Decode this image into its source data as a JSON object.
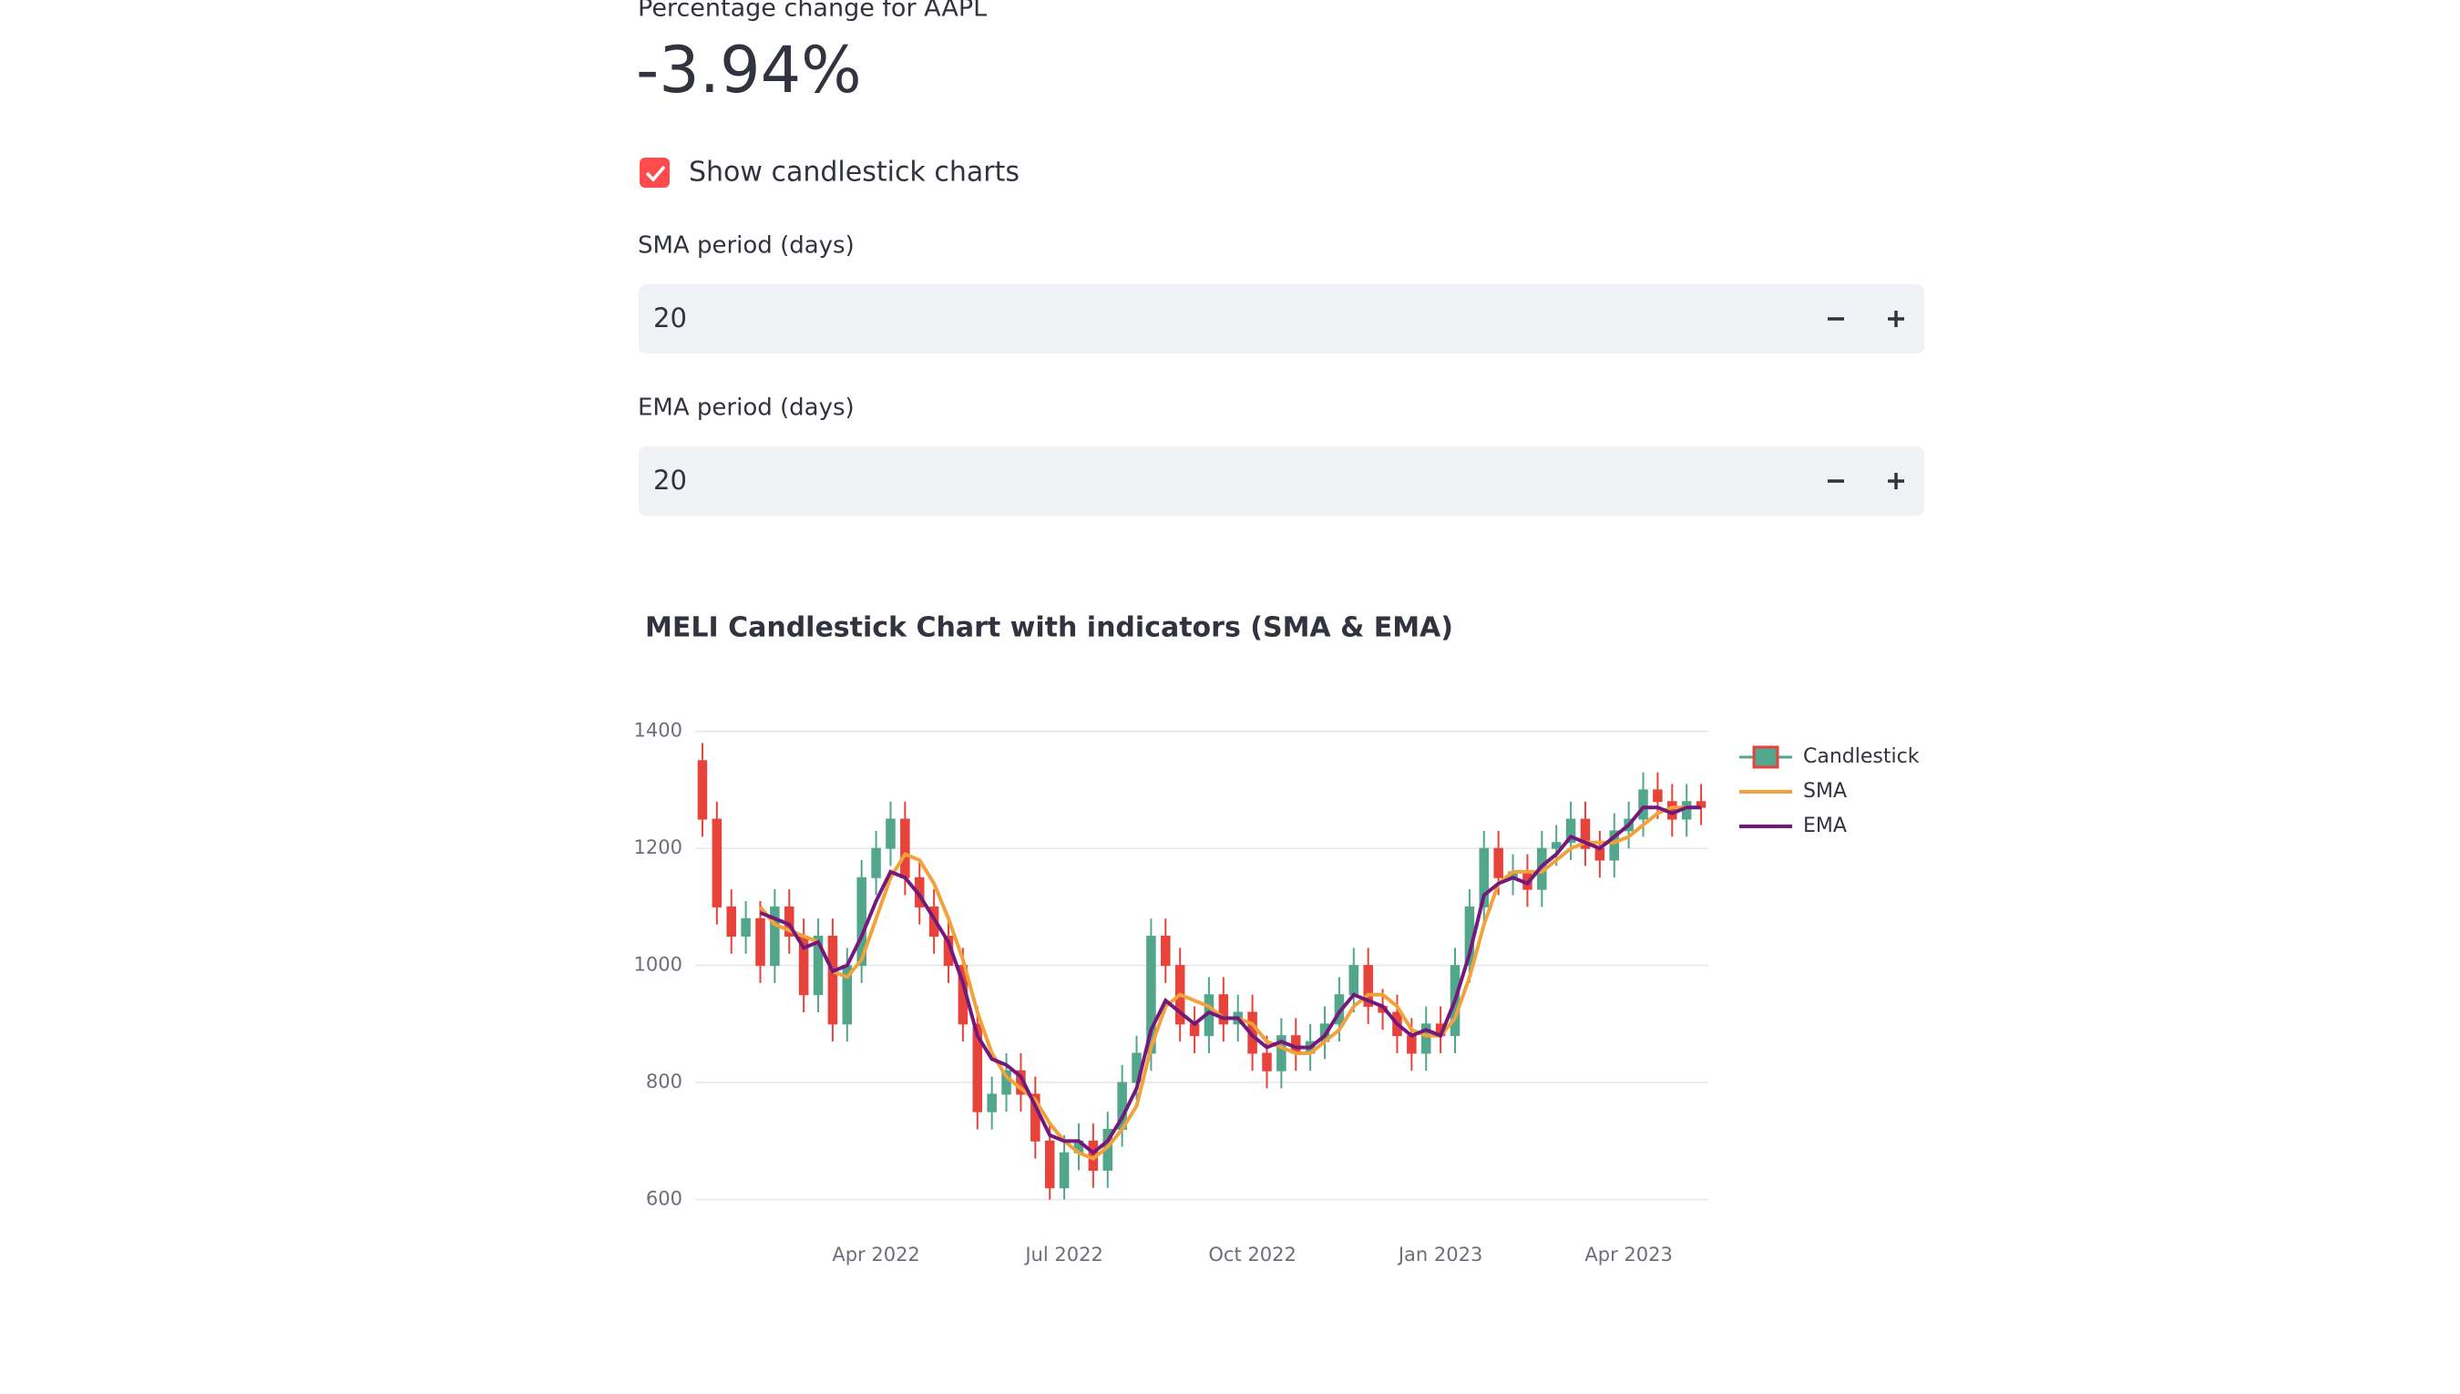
{
  "header": {
    "metric_label": "Percentage change for AAPL",
    "metric_value": "-3.94%"
  },
  "checkbox": {
    "label": "Show candlestick charts",
    "checked": true
  },
  "inputs": [
    {
      "label": "SMA period (days)",
      "value": 20
    },
    {
      "label": "EMA period (days)",
      "value": 20
    }
  ],
  "chart_data": {
    "type": "candlestick",
    "title": "MELI Candlestick Chart with indicators (SMA & EMA)",
    "categories": [
      null,
      null,
      null,
      null,
      null,
      null,
      null,
      null,
      null,
      null,
      null,
      null,
      "Apr 2022",
      null,
      null,
      null,
      null,
      null,
      null,
      null,
      null,
      null,
      null,
      null,
      null,
      "Jul 2022",
      null,
      null,
      null,
      null,
      null,
      null,
      null,
      null,
      null,
      null,
      null,
      null,
      "Oct 2022",
      null,
      null,
      null,
      null,
      null,
      null,
      null,
      null,
      null,
      null,
      null,
      null,
      "Jan 2023",
      null,
      null,
      null,
      null,
      null,
      null,
      null,
      null,
      null,
      null,
      null,
      null,
      "Apr 2023",
      null,
      null,
      null,
      null,
      null
    ],
    "candles": {
      "name": "Candlestick",
      "increasing_color": "#52a68c",
      "decreasing_color": "#e8433a",
      "open": [
        1350,
        1250,
        1100,
        1050,
        1080,
        1000,
        1100,
        1050,
        950,
        1050,
        900,
        1000,
        1150,
        1200,
        1250,
        1150,
        1100,
        1050,
        1000,
        900,
        750,
        780,
        820,
        780,
        700,
        620,
        680,
        700,
        650,
        720,
        800,
        850,
        1050,
        1000,
        900,
        880,
        950,
        900,
        920,
        850,
        820,
        880,
        850,
        870,
        900,
        950,
        1000,
        930,
        920,
        880,
        850,
        900,
        880,
        1000,
        1100,
        1200,
        1150,
        1160,
        1130,
        1200,
        1210,
        1250,
        1200,
        1180,
        1230,
        1250,
        1300,
        1280,
        1250,
        1280
      ],
      "high": [
        1380,
        1280,
        1130,
        1110,
        1110,
        1130,
        1130,
        1080,
        1080,
        1080,
        1030,
        1180,
        1230,
        1280,
        1280,
        1180,
        1130,
        1080,
        1030,
        930,
        810,
        850,
        850,
        810,
        730,
        710,
        730,
        730,
        750,
        830,
        880,
        1080,
        1080,
        1030,
        930,
        980,
        980,
        950,
        950,
        880,
        910,
        910,
        900,
        930,
        980,
        1030,
        1030,
        960,
        950,
        910,
        930,
        930,
        1030,
        1130,
        1230,
        1230,
        1190,
        1190,
        1230,
        1240,
        1280,
        1280,
        1230,
        1260,
        1280,
        1330,
        1330,
        1310,
        1310,
        1310
      ],
      "low": [
        1220,
        1070,
        1020,
        1020,
        970,
        970,
        1020,
        920,
        920,
        870,
        870,
        970,
        1120,
        1170,
        1120,
        1070,
        1020,
        970,
        870,
        720,
        720,
        750,
        750,
        670,
        600,
        600,
        650,
        620,
        620,
        690,
        770,
        820,
        970,
        870,
        850,
        850,
        870,
        870,
        820,
        790,
        790,
        820,
        820,
        840,
        870,
        920,
        900,
        890,
        850,
        820,
        820,
        850,
        850,
        970,
        1070,
        1120,
        1120,
        1100,
        1100,
        1170,
        1180,
        1170,
        1150,
        1150,
        1200,
        1220,
        1250,
        1220,
        1220,
        1240
      ],
      "close": [
        1250,
        1100,
        1050,
        1080,
        1000,
        1100,
        1050,
        950,
        1050,
        900,
        1000,
        1150,
        1200,
        1250,
        1150,
        1100,
        1050,
        1000,
        900,
        750,
        780,
        820,
        780,
        700,
        620,
        680,
        700,
        650,
        720,
        800,
        850,
        1050,
        1000,
        900,
        880,
        950,
        900,
        920,
        850,
        820,
        880,
        850,
        870,
        900,
        950,
        1000,
        930,
        920,
        880,
        850,
        900,
        880,
        1000,
        1100,
        1200,
        1150,
        1160,
        1130,
        1200,
        1210,
        1250,
        1200,
        1180,
        1230,
        1250,
        1300,
        1280,
        1250,
        1280,
        1270
      ]
    },
    "series": [
      {
        "name": "SMA",
        "color": "#f2a23a",
        "values": [
          null,
          null,
          null,
          null,
          1100,
          1070,
          1060,
          1050,
          1040,
          990,
          980,
          1010,
          1080,
          1150,
          1190,
          1180,
          1140,
          1080,
          1010,
          920,
          850,
          810,
          790,
          770,
          730,
          700,
          680,
          670,
          690,
          720,
          760,
          860,
          930,
          950,
          940,
          930,
          910,
          910,
          900,
          870,
          860,
          850,
          850,
          870,
          890,
          930,
          950,
          950,
          930,
          890,
          880,
          880,
          910,
          980,
          1070,
          1140,
          1160,
          1160,
          1160,
          1180,
          1200,
          1210,
          1210,
          1210,
          1220,
          1240,
          1260,
          1270,
          1270,
          1270
        ]
      },
      {
        "name": "EMA",
        "color": "#74197c",
        "values": [
          null,
          null,
          null,
          null,
          1090,
          1080,
          1070,
          1030,
          1040,
          990,
          1000,
          1050,
          1110,
          1160,
          1150,
          1120,
          1080,
          1040,
          970,
          880,
          840,
          830,
          810,
          760,
          710,
          700,
          700,
          680,
          700,
          740,
          790,
          890,
          940,
          920,
          900,
          920,
          910,
          910,
          880,
          860,
          870,
          860,
          860,
          880,
          920,
          950,
          940,
          930,
          900,
          880,
          890,
          880,
          940,
          1020,
          1120,
          1140,
          1150,
          1140,
          1170,
          1190,
          1220,
          1210,
          1200,
          1220,
          1240,
          1270,
          1270,
          1260,
          1270,
          1270
        ]
      }
    ],
    "ylim": [
      590,
      1440
    ],
    "yticks": [
      600,
      800,
      1000,
      1200,
      1400
    ],
    "grid": true
  }
}
